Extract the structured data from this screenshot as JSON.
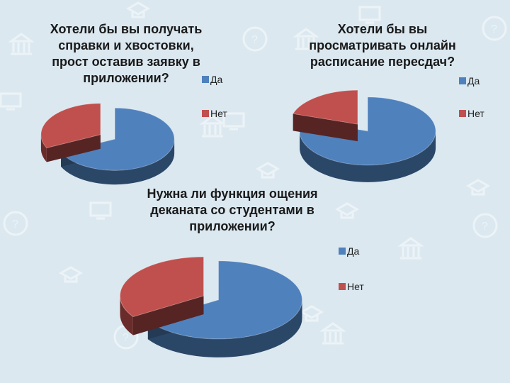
{
  "chart_data": [
    {
      "type": "pie",
      "title": "Хотели бы вы получать справки и хвостовки, прост оставив заявку в приложении?",
      "categories": [
        "Да",
        "Нет"
      ],
      "values": [
        68,
        32
      ],
      "colors": [
        "#4f81bd",
        "#c0504d"
      ],
      "exploded": true,
      "three_d": true,
      "legend": "right"
    },
    {
      "type": "pie",
      "title": "Хотели бы вы просматривать онлайн расписание пересдач?",
      "categories": [
        "Да",
        "Нет"
      ],
      "values": [
        80,
        20
      ],
      "colors": [
        "#4f81bd",
        "#c0504d"
      ],
      "exploded": true,
      "three_d": true,
      "legend": "right"
    },
    {
      "type": "pie",
      "title": "Нужна ли функция ощения деканата со студентами в приложении?",
      "categories": [
        "Да",
        "Нет"
      ],
      "values": [
        66,
        34
      ],
      "colors": [
        "#4f81bd",
        "#c0504d"
      ],
      "exploded": true,
      "three_d": true,
      "legend": "right"
    }
  ],
  "background": {
    "color": "#dbe8f0",
    "pattern_icons": [
      "question-icon",
      "bank-icon",
      "monitor-icon",
      "graduation-cap-icon"
    ]
  }
}
